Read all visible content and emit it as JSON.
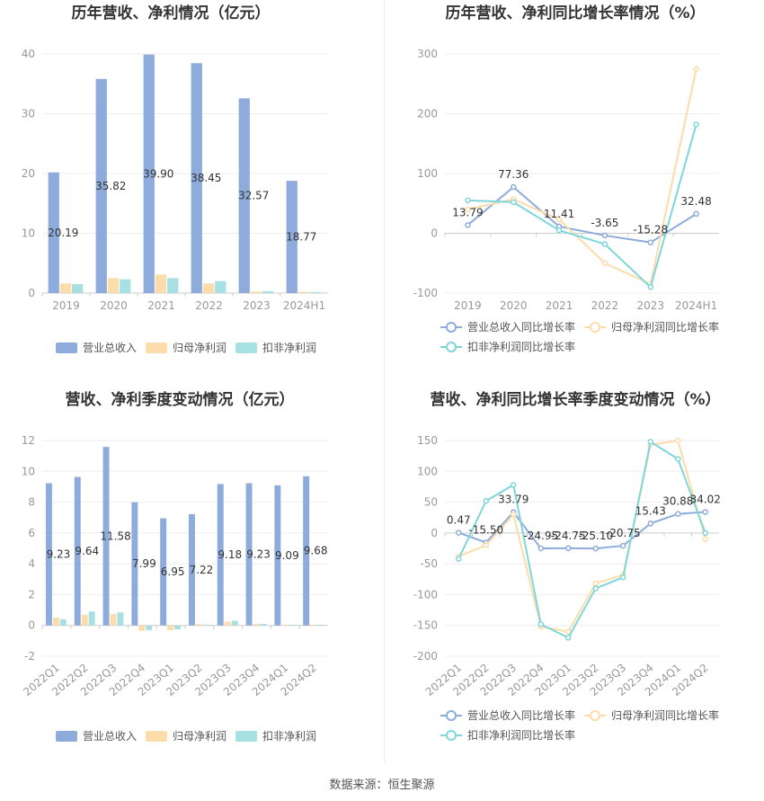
{
  "source": "数据来源：恒生聚源",
  "colors": {
    "revenue": "#8eacdb",
    "net_profit": "#fbdcaa",
    "deducted_profit": "#a7e0e3",
    "revenue_line": "#8eacdb",
    "net_line": "#fbdcaa",
    "deducted_line": "#7fd6da"
  },
  "chart_data": [
    {
      "id": "annual-bar",
      "type": "bar",
      "title": "历年营收、净利情况（亿元）",
      "categories": [
        "2019",
        "2020",
        "2021",
        "2022",
        "2023",
        "2024H1"
      ],
      "ylim": [
        0,
        40
      ],
      "yticks": [
        0,
        10,
        20,
        30,
        40
      ],
      "series": [
        {
          "name": "营业总收入",
          "values": [
            20.19,
            35.82,
            39.9,
            38.45,
            32.57,
            18.77
          ],
          "labels": [
            "20.19",
            "35.82",
            "39.90",
            "38.45",
            "32.57",
            "18.77"
          ]
        },
        {
          "name": "归母净利润",
          "values": [
            1.6,
            2.5,
            3.1,
            1.6,
            0.25,
            0.2
          ]
        },
        {
          "name": "扣非净利润",
          "values": [
            1.5,
            2.3,
            2.5,
            2.0,
            0.3,
            0.15
          ]
        }
      ]
    },
    {
      "id": "annual-line",
      "type": "line",
      "title": "历年营收、净利同比增长率情况（%）",
      "categories": [
        "2019",
        "2020",
        "2021",
        "2022",
        "2023",
        "2024H1"
      ],
      "ylim": [
        -100,
        300
      ],
      "yticks": [
        -100,
        0,
        100,
        200,
        300
      ],
      "series": [
        {
          "name": "营业总收入同比增长率",
          "values": [
            13.79,
            77.36,
            11.41,
            -3.65,
            -15.28,
            32.48
          ],
          "labels": [
            "13.79",
            "77.36",
            "11.41",
            "-3.65",
            "-15.28",
            "32.48"
          ]
        },
        {
          "name": "归母净利润同比增长率",
          "values": [
            40,
            57,
            23,
            -50,
            -85,
            275
          ]
        },
        {
          "name": "扣非净利润同比增长率",
          "values": [
            55,
            52,
            5,
            -18,
            -90,
            182
          ]
        }
      ]
    },
    {
      "id": "quarter-bar",
      "type": "bar",
      "title": "营收、净利季度变动情况（亿元）",
      "categories": [
        "2022Q1",
        "2022Q2",
        "2022Q3",
        "2022Q4",
        "2023Q1",
        "2023Q2",
        "2023Q3",
        "2023Q4",
        "2024Q1",
        "2024Q2"
      ],
      "ylim": [
        -2,
        12
      ],
      "yticks": [
        -2,
        0,
        2,
        4,
        6,
        8,
        10,
        12
      ],
      "series": [
        {
          "name": "营业总收入",
          "values": [
            9.23,
            9.64,
            11.58,
            7.99,
            6.95,
            7.22,
            9.18,
            9.23,
            9.09,
            9.68
          ],
          "labels": [
            "9.23",
            "9.64",
            "11.58",
            "7.99",
            "6.95",
            "7.22",
            "9.18",
            "9.23",
            "9.09",
            "9.68"
          ]
        },
        {
          "name": "归母净利润",
          "values": [
            0.5,
            0.7,
            0.75,
            -0.35,
            -0.3,
            0.1,
            0.25,
            0.1,
            0.05,
            0.05
          ]
        },
        {
          "name": "扣非净利润",
          "values": [
            0.4,
            0.9,
            0.85,
            -0.3,
            -0.25,
            0.05,
            0.3,
            0.1,
            0.05,
            0.05
          ]
        }
      ]
    },
    {
      "id": "quarter-line",
      "type": "line",
      "title": "营收、净利同比增长率季度变动情况（%）",
      "categories": [
        "2022Q1",
        "2022Q2",
        "2022Q3",
        "2022Q4",
        "2023Q1",
        "2023Q2",
        "2023Q3",
        "2023Q4",
        "2024Q1",
        "2024Q2"
      ],
      "ylim": [
        -200,
        150
      ],
      "yticks": [
        -200,
        -150,
        -100,
        -50,
        0,
        50,
        100,
        150
      ],
      "series": [
        {
          "name": "营业总收入同比增长率",
          "values": [
            0.47,
            -15.5,
            33.79,
            -24.95,
            -24.75,
            -25.1,
            -20.75,
            15.43,
            30.88,
            34.02
          ],
          "labels": [
            "0.47",
            "-15.50",
            "33.79",
            "-24.95",
            "-24.75",
            "-25.10",
            "-20.75",
            "15.43",
            "30.88",
            "34.02"
          ]
        },
        {
          "name": "归母净利润同比增长率",
          "values": [
            -38,
            -20,
            30,
            -152,
            -160,
            -82,
            -68,
            143,
            150,
            -10
          ]
        },
        {
          "name": "扣非净利润同比增长率",
          "values": [
            -42,
            52,
            78,
            -148,
            -170,
            -90,
            -72,
            148,
            120,
            0
          ]
        }
      ]
    }
  ]
}
